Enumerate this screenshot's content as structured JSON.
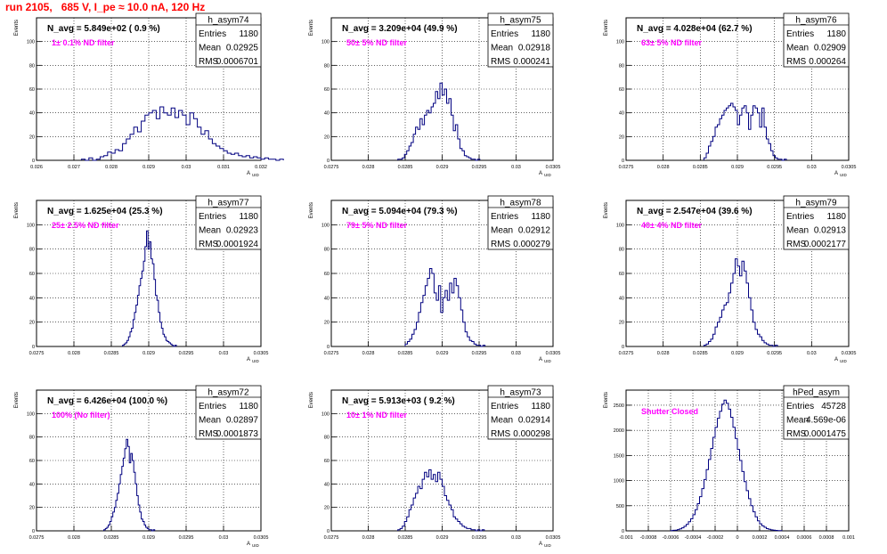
{
  "page_title": "run 2105,   685 V, I_pe ≈ 10.0 nA, 120 Hz",
  "colors": {
    "histogram": "#000080",
    "annotation": "#ff00ff",
    "title": "#ff0000"
  },
  "chart_data": [
    {
      "type": "histogram",
      "name": "h_asym74",
      "ylabel": "Events",
      "xlabel": "A_UID",
      "navg": "N_avg = 5.849e+02 ( 0.9 %)",
      "note": "1± 0.1% ND filter",
      "stats": {
        "entries": "1180",
        "mean": "0.02925",
        "rms": "0.0006701"
      },
      "xlim": [
        0.026,
        0.032
      ],
      "ylim": [
        0,
        120
      ],
      "xticks": [
        "0.026",
        "0.027",
        "0.028",
        "0.029",
        "0.03",
        "0.031",
        "0.032"
      ],
      "yticks": [
        "0",
        "20",
        "40",
        "60",
        "80",
        "100"
      ],
      "bin_start": 0.0272,
      "bin_width": 0.0001,
      "counts": [
        1,
        0,
        2,
        0,
        1,
        3,
        4,
        7,
        6,
        9,
        8,
        14,
        18,
        22,
        28,
        24,
        33,
        38,
        40,
        42,
        35,
        45,
        40,
        38,
        44,
        36,
        42,
        38,
        30,
        40,
        35,
        28,
        22,
        25,
        18,
        14,
        12,
        10,
        8,
        6,
        5,
        6,
        4,
        3,
        4,
        2,
        3,
        2,
        1,
        2,
        1,
        1,
        0,
        1
      ]
    },
    {
      "type": "histogram",
      "name": "h_asym75",
      "ylabel": "Events",
      "xlabel": "A_UID",
      "navg": "N_avg = 3.209e+04 (49.9 %)",
      "note": "50± 5% ND filter",
      "stats": {
        "entries": "1180",
        "mean": "0.02918",
        "rms": "0.000241"
      },
      "xlim": [
        0.0275,
        0.0305
      ],
      "ylim": [
        0,
        120
      ],
      "xticks": [
        "0.0275",
        "0.028",
        "0.0285",
        "0.029",
        "0.0295",
        "0.03",
        "0.0305"
      ],
      "yticks": [
        "0",
        "20",
        "40",
        "60",
        "80",
        "100"
      ],
      "bin_start": 0.0284,
      "bin_width": 3e-05,
      "counts": [
        1,
        1,
        2,
        5,
        8,
        12,
        15,
        22,
        28,
        26,
        35,
        30,
        38,
        42,
        40,
        45,
        48,
        58,
        52,
        65,
        55,
        60,
        48,
        52,
        38,
        25,
        30,
        18,
        10,
        8,
        4,
        3,
        2,
        1,
        1,
        0,
        1
      ]
    },
    {
      "type": "histogram",
      "name": "h_asym76",
      "ylabel": "Events",
      "xlabel": "A_UID",
      "navg": "N_avg = 4.028e+04 (62.7 %)",
      "note": "63± 5% ND filter",
      "stats": {
        "entries": "1180",
        "mean": "0.02909",
        "rms": "0.000264"
      },
      "xlim": [
        0.0275,
        0.0305
      ],
      "ylim": [
        0,
        120
      ],
      "xticks": [
        "0.0275",
        "0.028",
        "0.0285",
        "0.029",
        "0.0295",
        "0.03",
        "0.0305"
      ],
      "yticks": [
        "0",
        "20",
        "40",
        "60",
        "80",
        "100"
      ],
      "bin_start": 0.02855,
      "bin_width": 3e-05,
      "counts": [
        2,
        6,
        12,
        16,
        20,
        28,
        30,
        35,
        38,
        42,
        44,
        46,
        48,
        45,
        42,
        30,
        38,
        44,
        46,
        40,
        26,
        38,
        46,
        44,
        40,
        28,
        44,
        28,
        18,
        14,
        8,
        4,
        2,
        1,
        1,
        0,
        1
      ]
    },
    {
      "type": "histogram",
      "name": "h_asym77",
      "ylabel": "Events",
      "xlabel": "A_UID",
      "navg": "N_avg = 1.625e+04 (25.3 %)",
      "note": "25± 2.5% ND filter",
      "stats": {
        "entries": "1180",
        "mean": "0.02923",
        "rms": "0.0001924"
      },
      "xlim": [
        0.0275,
        0.0305
      ],
      "ylim": [
        0,
        120
      ],
      "xticks": [
        "0.0275",
        "0.028",
        "0.0285",
        "0.029",
        "0.0295",
        "0.03",
        "0.0305"
      ],
      "yticks": [
        "0",
        "20",
        "40",
        "60",
        "80",
        "100"
      ],
      "bin_start": 0.02865,
      "bin_width": 2e-05,
      "counts": [
        1,
        2,
        3,
        5,
        8,
        12,
        15,
        22,
        28,
        34,
        42,
        50,
        56,
        62,
        70,
        82,
        95,
        80,
        86,
        72,
        68,
        55,
        42,
        38,
        28,
        20,
        15,
        10,
        8,
        5,
        4,
        3,
        2,
        1,
        0,
        1
      ]
    },
    {
      "type": "histogram",
      "name": "h_asym78",
      "ylabel": "Events",
      "xlabel": "A_UID",
      "navg": "N_avg = 5.094e+04 (79.3 %)",
      "note": "79± 5% ND filter",
      "stats": {
        "entries": "1180",
        "mean": "0.02912",
        "rms": "0.000279"
      },
      "xlim": [
        0.0275,
        0.0305
      ],
      "ylim": [
        0,
        120
      ],
      "xticks": [
        "0.0275",
        "0.028",
        "0.0285",
        "0.029",
        "0.0295",
        "0.03",
        "0.0305"
      ],
      "yticks": [
        "0",
        "20",
        "40",
        "60",
        "80",
        "100"
      ],
      "bin_start": 0.0285,
      "bin_width": 3e-05,
      "counts": [
        2,
        4,
        6,
        10,
        14,
        20,
        28,
        36,
        42,
        50,
        56,
        64,
        60,
        44,
        38,
        50,
        28,
        40,
        46,
        38,
        52,
        44,
        56,
        50,
        40,
        30,
        20,
        12,
        8,
        5,
        4,
        2,
        1,
        1,
        0,
        1
      ]
    },
    {
      "type": "histogram",
      "name": "h_asym79",
      "ylabel": "Events",
      "xlabel": "A_UID",
      "navg": "N_avg = 2.547e+04 (39.6 %)",
      "note": "40± 4% ND filter",
      "stats": {
        "entries": "1180",
        "mean": "0.02913",
        "rms": "0.0002177"
      },
      "xlim": [
        0.0275,
        0.0305
      ],
      "ylim": [
        0,
        120
      ],
      "xticks": [
        "0.0275",
        "0.028",
        "0.0285",
        "0.029",
        "0.0295",
        "0.03",
        "0.0305"
      ],
      "yticks": [
        "0",
        "20",
        "40",
        "60",
        "80",
        "100"
      ],
      "bin_start": 0.02855,
      "bin_width": 3e-05,
      "counts": [
        1,
        2,
        4,
        6,
        10,
        16,
        20,
        24,
        30,
        34,
        36,
        44,
        52,
        60,
        72,
        66,
        58,
        70,
        62,
        52,
        40,
        30,
        20,
        14,
        10,
        8,
        5,
        3,
        2,
        1,
        1,
        0,
        1
      ]
    },
    {
      "type": "histogram",
      "name": "h_asym72",
      "ylabel": "Events",
      "xlabel": "A_UID",
      "navg": "N_avg = 6.426e+04 (100.0 %)",
      "note": "100% (No filter)",
      "stats": {
        "entries": "1180",
        "mean": "0.02897",
        "rms": "0.0001873"
      },
      "xlim": [
        0.0275,
        0.0305
      ],
      "ylim": [
        0,
        120
      ],
      "xticks": [
        "0.0275",
        "0.028",
        "0.0285",
        "0.029",
        "0.0295",
        "0.03",
        "0.0305"
      ],
      "yticks": [
        "0",
        "20",
        "40",
        "60",
        "80",
        "100"
      ],
      "bin_start": 0.0284,
      "bin_width": 2e-05,
      "counts": [
        1,
        2,
        3,
        5,
        8,
        12,
        16,
        20,
        26,
        32,
        40,
        48,
        55,
        62,
        70,
        78,
        72,
        58,
        66,
        60,
        50,
        40,
        30,
        22,
        16,
        10,
        8,
        5,
        3,
        2,
        1,
        1,
        0,
        1
      ]
    },
    {
      "type": "histogram",
      "name": "h_asym73",
      "ylabel": "Events",
      "xlabel": "A_UID",
      "navg": "N_avg = 5.913e+03 ( 9.2 %)",
      "note": "10± 1% ND filter",
      "stats": {
        "entries": "1180",
        "mean": "0.02914",
        "rms": "0.000298"
      },
      "xlim": [
        0.0275,
        0.0305
      ],
      "ylim": [
        0,
        120
      ],
      "xticks": [
        "0.0275",
        "0.028",
        "0.0285",
        "0.029",
        "0.0295",
        "0.03",
        "0.0305"
      ],
      "yticks": [
        "0",
        "20",
        "40",
        "60",
        "80",
        "100"
      ],
      "bin_start": 0.0284,
      "bin_width": 3e-05,
      "counts": [
        1,
        2,
        4,
        8,
        12,
        18,
        22,
        28,
        32,
        38,
        36,
        44,
        50,
        46,
        52,
        44,
        48,
        42,
        50,
        44,
        38,
        30,
        26,
        22,
        18,
        12,
        10,
        8,
        6,
        4,
        3,
        2,
        2,
        1,
        1,
        0,
        1,
        0,
        1
      ]
    },
    {
      "type": "histogram",
      "name": "hPed_asym",
      "ylabel": "Events",
      "xlabel": "",
      "navg": "",
      "note": "Shutter Closed",
      "stats": {
        "entries": "45728",
        "mean": "4.569e-06",
        "rms": "0.0001475"
      },
      "xlim": [
        -0.001,
        0.001
      ],
      "ylim": [
        0,
        2800
      ],
      "xticks": [
        "-0.001",
        "-0.0008",
        "-0.0006",
        "-0.0004",
        "-0.0002",
        "0",
        "0.0002",
        "0.0004",
        "0.0006",
        "0.0008",
        "0.001"
      ],
      "yticks": [
        "0",
        "500",
        "1000",
        "1500",
        "2000",
        "2500"
      ],
      "bin_start": -0.0006,
      "bin_width": 2e-05,
      "counts": [
        5,
        10,
        15,
        25,
        40,
        60,
        90,
        130,
        180,
        240,
        320,
        420,
        540,
        680,
        840,
        1020,
        1220,
        1420,
        1640,
        1860,
        2060,
        2240,
        2380,
        2520,
        2600,
        2540,
        2420,
        2260,
        2060,
        1840,
        1620,
        1400,
        1180,
        980,
        800,
        640,
        500,
        380,
        280,
        200,
        140,
        100,
        70,
        45,
        30,
        20,
        12,
        8,
        5,
        3
      ]
    }
  ]
}
